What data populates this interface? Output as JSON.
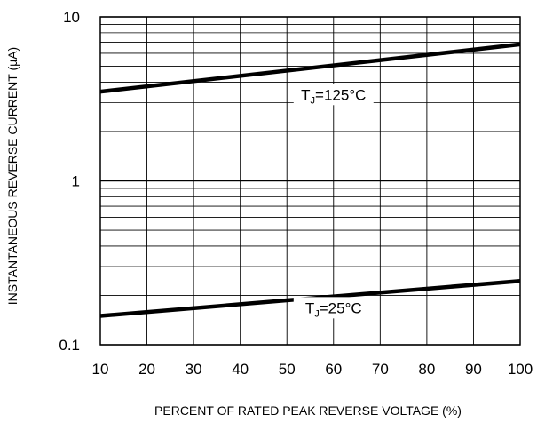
{
  "chart_data": {
    "type": "line",
    "xlabel": "PERCENT OF RATED PEAK REVERSE VOLTAGE (%)",
    "ylabel": "INSTANTANEOUS REVERSE CURRENT (μA)",
    "xlim": [
      10,
      100
    ],
    "ylim": [
      0.1,
      10
    ],
    "yscale": "log",
    "grid": true,
    "x_ticks": [
      "10",
      "20",
      "30",
      "40",
      "50",
      "60",
      "70",
      "80",
      "90",
      "100"
    ],
    "y_ticks": [
      {
        "value": 10,
        "label": "10"
      },
      {
        "value": 1,
        "label": "1"
      },
      {
        "value": 0.1,
        "label": "0.1"
      }
    ],
    "series": [
      {
        "label_main": "T",
        "label_sub": "J",
        "label_rest": "=125°C",
        "label_at": [
          60,
          3.2
        ],
        "x": [
          10,
          100
        ],
        "y": [
          3.5,
          6.8
        ]
      },
      {
        "label_main": "T",
        "label_sub": "J",
        "label_rest": "=25°C",
        "label_at": [
          60,
          0.16
        ],
        "x": [
          10,
          100
        ],
        "y": [
          0.15,
          0.245
        ]
      }
    ]
  }
}
